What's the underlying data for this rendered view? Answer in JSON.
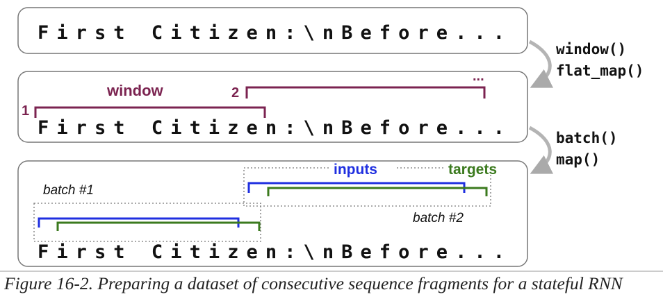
{
  "sequence_text": "First Citizen:\\nBefore...",
  "ellipsis": "...",
  "operations": {
    "step1": [
      "window()",
      "flat_map()"
    ],
    "step2": [
      "batch()",
      "map()"
    ]
  },
  "labels": {
    "window": "window",
    "window_num_1": "1",
    "window_num_2": "2",
    "inputs": "inputs",
    "targets": "targets",
    "batch1": "batch #1",
    "batch2": "batch #2"
  },
  "colors": {
    "window_bracket": "#7b2350",
    "inputs_bracket": "#1f2fe0",
    "targets_bracket": "#3b7a1e",
    "arrow": "#aaaaaa"
  },
  "caption": "Figure 16-2. Preparing a dataset of consecutive sequence fragments for a stateful RNN"
}
